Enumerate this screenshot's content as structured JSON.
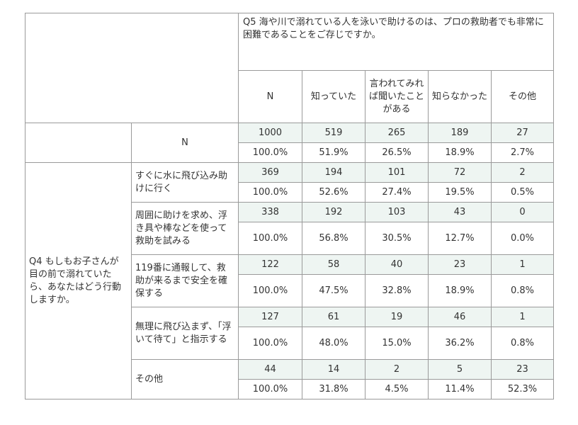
{
  "header": {
    "question": "Q5 海や川で溺れている人を泳いで助けるのは、プロの救助者でも非常に困難であることをご存じですか。",
    "columns": [
      "N",
      "知っていた",
      "言われてみれば聞いたことがある",
      "知らなかった",
      "その他"
    ]
  },
  "total": {
    "label": "N",
    "counts": [
      "1000",
      "519",
      "265",
      "189",
      "27"
    ],
    "percents": [
      "100.0%",
      "51.9%",
      "26.5%",
      "18.9%",
      "2.7%"
    ]
  },
  "q4": {
    "question": "Q4 もしもお子さんが目の前で溺れていたら、あなたはどう行動しますか。",
    "rows": [
      {
        "label": "すぐに水に飛び込み助けに行く",
        "counts": [
          "369",
          "194",
          "101",
          "72",
          "2"
        ],
        "percents": [
          "100.0%",
          "52.6%",
          "27.4%",
          "19.5%",
          "0.5%"
        ]
      },
      {
        "label": "周囲に助けを求め、浮き具や棒などを使って救助を試みる",
        "counts": [
          "338",
          "192",
          "103",
          "43",
          "0"
        ],
        "percents": [
          "100.0%",
          "56.8%",
          "30.5%",
          "12.7%",
          "0.0%"
        ]
      },
      {
        "label": "119番に通報して、救助が来るまで安全を確保する",
        "counts": [
          "122",
          "58",
          "40",
          "23",
          "1"
        ],
        "percents": [
          "100.0%",
          "47.5%",
          "32.8%",
          "18.9%",
          "0.8%"
        ]
      },
      {
        "label": "無理に飛び込まず、「浮いて待て」と指示する",
        "counts": [
          "127",
          "61",
          "19",
          "46",
          "1"
        ],
        "percents": [
          "100.0%",
          "48.0%",
          "15.0%",
          "36.2%",
          "0.8%"
        ]
      },
      {
        "label": "その他",
        "counts": [
          "44",
          "14",
          "2",
          "5",
          "23"
        ],
        "percents": [
          "100.0%",
          "31.8%",
          "4.5%",
          "11.4%",
          "52.3%"
        ]
      }
    ]
  }
}
